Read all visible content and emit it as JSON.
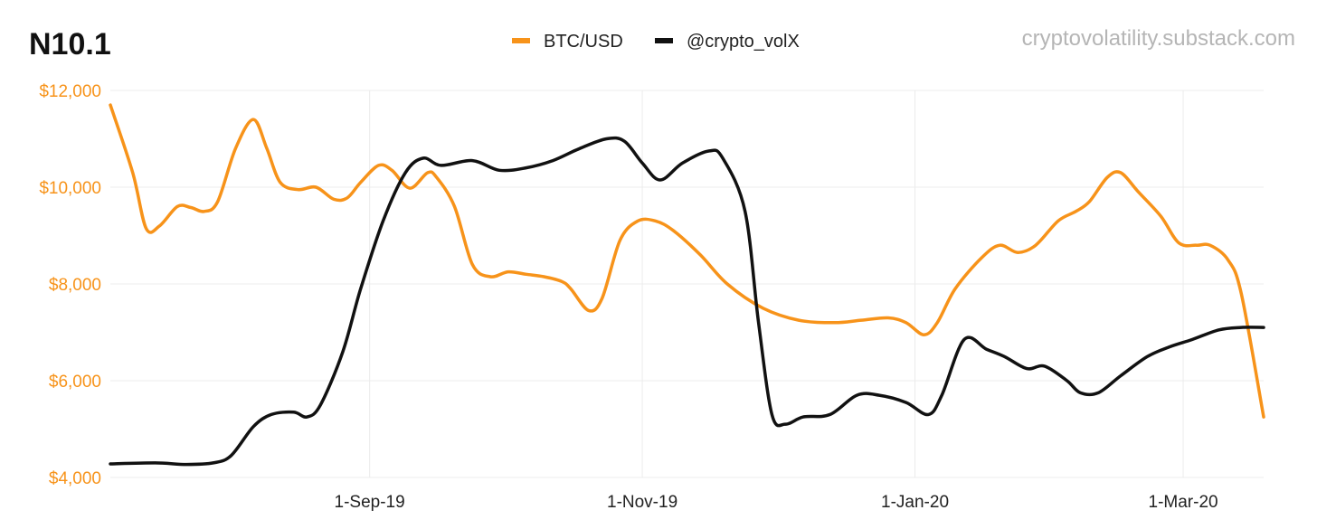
{
  "header": {
    "title": "N10.1",
    "source": "cryptovolatility.substack.com"
  },
  "chart_data": {
    "type": "line",
    "title": "N10.1",
    "xlabel": "",
    "ylabel": "",
    "x_tick_labels": [
      {
        "date": "2019-09-01",
        "label": "1-Sep-19"
      },
      {
        "date": "2019-11-01",
        "label": "1-Nov-19"
      },
      {
        "date": "2020-01-01",
        "label": "1-Jan-20"
      },
      {
        "date": "2020-03-01",
        "label": "1-Mar-20"
      }
    ],
    "y_tick_labels": [
      {
        "value": 4000,
        "label": "$4,000"
      },
      {
        "value": 6000,
        "label": "$6,000"
      },
      {
        "value": 8000,
        "label": "$8,000"
      },
      {
        "value": 10000,
        "label": "$10,000"
      },
      {
        "value": 12000,
        "label": "$12,000"
      }
    ],
    "xlim": [
      "2019-07-05",
      "2020-03-19"
    ],
    "ylim": [
      4000,
      12000
    ],
    "grid": true,
    "legend_position": "top-center",
    "series": [
      {
        "name": "BTC/USD",
        "color": "#F7931A",
        "points": [
          [
            "2019-07-05",
            11700
          ],
          [
            "2019-07-10",
            10300
          ],
          [
            "2019-07-13",
            9150
          ],
          [
            "2019-07-16",
            9200
          ],
          [
            "2019-07-20",
            9600
          ],
          [
            "2019-07-23",
            9580
          ],
          [
            "2019-07-26",
            9500
          ],
          [
            "2019-07-29",
            9700
          ],
          [
            "2019-08-02",
            10800
          ],
          [
            "2019-08-06",
            11400
          ],
          [
            "2019-08-09",
            10800
          ],
          [
            "2019-08-12",
            10100
          ],
          [
            "2019-08-16",
            9950
          ],
          [
            "2019-08-20",
            10000
          ],
          [
            "2019-08-24",
            9750
          ],
          [
            "2019-08-27",
            9780
          ],
          [
            "2019-08-30",
            10100
          ],
          [
            "2019-09-03",
            10450
          ],
          [
            "2019-09-06",
            10350
          ],
          [
            "2019-09-10",
            9980
          ],
          [
            "2019-09-14",
            10300
          ],
          [
            "2019-09-16",
            10200
          ],
          [
            "2019-09-20",
            9600
          ],
          [
            "2019-09-24",
            8400
          ],
          [
            "2019-09-28",
            8150
          ],
          [
            "2019-10-02",
            8250
          ],
          [
            "2019-10-06",
            8200
          ],
          [
            "2019-10-10",
            8150
          ],
          [
            "2019-10-14",
            8050
          ],
          [
            "2019-10-16",
            7900
          ],
          [
            "2019-10-20",
            7450
          ],
          [
            "2019-10-23",
            7700
          ],
          [
            "2019-10-27",
            8900
          ],
          [
            "2019-10-31",
            9300
          ],
          [
            "2019-11-04",
            9300
          ],
          [
            "2019-11-08",
            9100
          ],
          [
            "2019-11-14",
            8600
          ],
          [
            "2019-11-20",
            8000
          ],
          [
            "2019-11-28",
            7500
          ],
          [
            "2019-12-06",
            7250
          ],
          [
            "2019-12-14",
            7200
          ],
          [
            "2019-12-20",
            7250
          ],
          [
            "2019-12-26",
            7300
          ],
          [
            "2019-12-30",
            7200
          ],
          [
            "2020-01-03",
            6950
          ],
          [
            "2020-01-06",
            7200
          ],
          [
            "2020-01-10",
            7900
          ],
          [
            "2020-01-16",
            8550
          ],
          [
            "2020-01-20",
            8800
          ],
          [
            "2020-01-24",
            8650
          ],
          [
            "2020-01-28",
            8800
          ],
          [
            "2020-02-02",
            9300
          ],
          [
            "2020-02-06",
            9500
          ],
          [
            "2020-02-09",
            9700
          ],
          [
            "2020-02-13",
            10200
          ],
          [
            "2020-02-16",
            10300
          ],
          [
            "2020-02-20",
            9900
          ],
          [
            "2020-02-25",
            9400
          ],
          [
            "2020-02-29",
            8850
          ],
          [
            "2020-03-04",
            8800
          ],
          [
            "2020-03-07",
            8800
          ],
          [
            "2020-03-11",
            8500
          ],
          [
            "2020-03-14",
            7800
          ],
          [
            "2020-03-19",
            5250
          ]
        ]
      },
      {
        "name": "@crypto_volX",
        "color": "#111111",
        "points": [
          [
            "2019-07-05",
            4280
          ],
          [
            "2019-07-15",
            4300
          ],
          [
            "2019-07-22",
            4270
          ],
          [
            "2019-07-28",
            4300
          ],
          [
            "2019-08-01",
            4450
          ],
          [
            "2019-08-06",
            5050
          ],
          [
            "2019-08-10",
            5300
          ],
          [
            "2019-08-15",
            5350
          ],
          [
            "2019-08-18",
            5250
          ],
          [
            "2019-08-21",
            5500
          ],
          [
            "2019-08-26",
            6600
          ],
          [
            "2019-08-30",
            7900
          ],
          [
            "2019-09-04",
            9300
          ],
          [
            "2019-09-09",
            10300
          ],
          [
            "2019-09-13",
            10600
          ],
          [
            "2019-09-17",
            10450
          ],
          [
            "2019-09-24",
            10550
          ],
          [
            "2019-09-30",
            10350
          ],
          [
            "2019-10-06",
            10400
          ],
          [
            "2019-10-12",
            10550
          ],
          [
            "2019-10-18",
            10800
          ],
          [
            "2019-10-24",
            11000
          ],
          [
            "2019-10-28",
            10950
          ],
          [
            "2019-11-01",
            10500
          ],
          [
            "2019-11-05",
            10150
          ],
          [
            "2019-11-10",
            10500
          ],
          [
            "2019-11-16",
            10750
          ],
          [
            "2019-11-19",
            10600
          ],
          [
            "2019-11-24",
            9500
          ],
          [
            "2019-11-27",
            7200
          ],
          [
            "2019-11-30",
            5300
          ],
          [
            "2019-12-03",
            5100
          ],
          [
            "2019-12-07",
            5250
          ],
          [
            "2019-12-13",
            5300
          ],
          [
            "2019-12-19",
            5700
          ],
          [
            "2019-12-24",
            5700
          ],
          [
            "2019-12-30",
            5550
          ],
          [
            "2020-01-04",
            5300
          ],
          [
            "2020-01-07",
            5700
          ],
          [
            "2020-01-12",
            6850
          ],
          [
            "2020-01-17",
            6650
          ],
          [
            "2020-01-21",
            6500
          ],
          [
            "2020-01-26",
            6250
          ],
          [
            "2020-01-30",
            6300
          ],
          [
            "2020-02-04",
            6000
          ],
          [
            "2020-02-07",
            5750
          ],
          [
            "2020-02-11",
            5750
          ],
          [
            "2020-02-16",
            6100
          ],
          [
            "2020-02-22",
            6500
          ],
          [
            "2020-02-27",
            6700
          ],
          [
            "2020-03-03",
            6850
          ],
          [
            "2020-03-09",
            7050
          ],
          [
            "2020-03-14",
            7100
          ],
          [
            "2020-03-19",
            7100
          ]
        ]
      }
    ]
  }
}
